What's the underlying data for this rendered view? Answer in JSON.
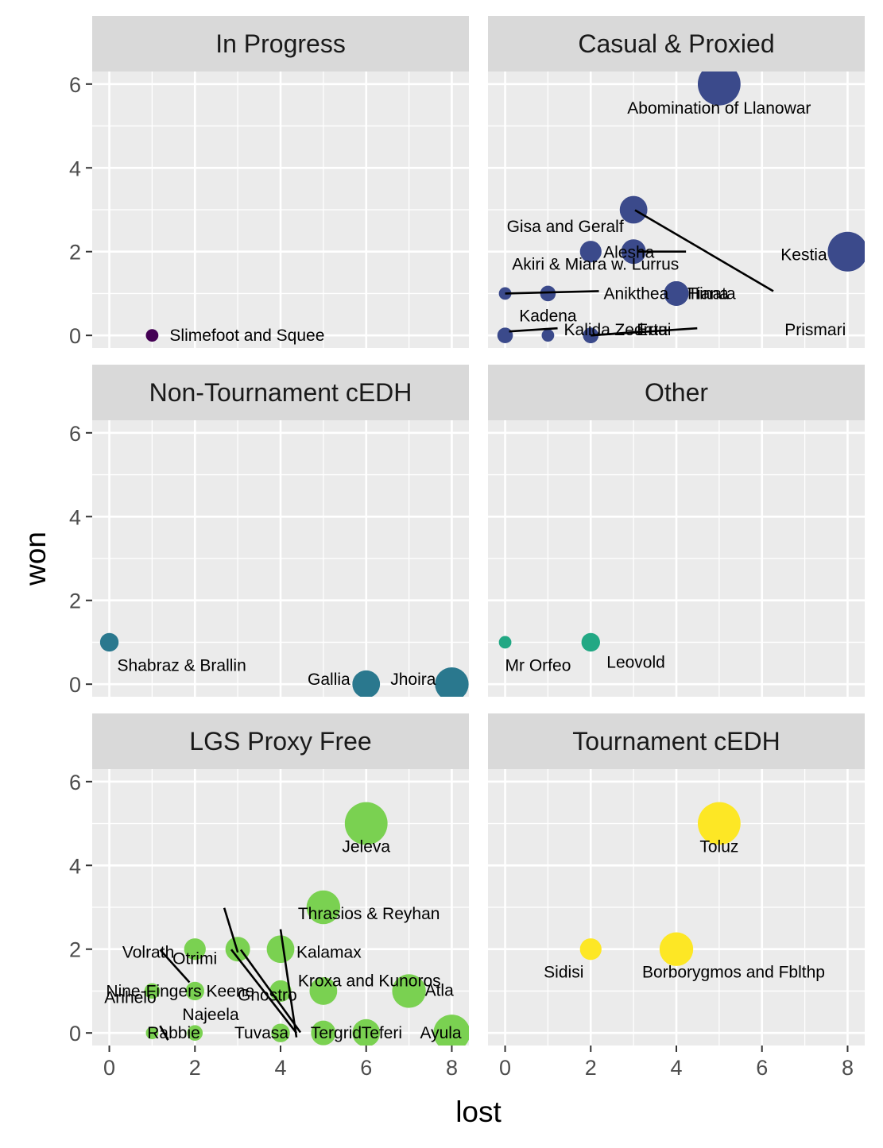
{
  "chart_data": {
    "type": "scatter",
    "xlabel": "lost",
    "ylabel": "won",
    "xlim": [
      -0.4,
      8.4
    ],
    "ylim": [
      -0.3,
      6.3
    ],
    "x_ticks": [
      "0",
      "2",
      "4",
      "6",
      "8"
    ],
    "y_ticks": [
      "0",
      "2",
      "4",
      "6"
    ],
    "grid": true,
    "legend": "none",
    "facets": [
      {
        "name": "In Progress",
        "color": "#440154",
        "points": [
          {
            "label": "Slimefoot and Squee",
            "x": 1,
            "y": 0,
            "size": 1
          }
        ]
      },
      {
        "name": "Casual & Proxied",
        "color": "#3b4a8b",
        "points": [
          {
            "label": "Abomination of Llanowar",
            "x": 5,
            "y": 6,
            "size": 11
          },
          {
            "label": "Gisa and Geralf",
            "x": 3,
            "y": 3,
            "size": 6
          },
          {
            "label": "Akiri & Miara w. Lurrus",
            "x": 2,
            "y": 2,
            "size": 4
          },
          {
            "label": "Alesha",
            "x": 3,
            "y": 2,
            "size": 5
          },
          {
            "label": "Kestia",
            "x": 8,
            "y": 2,
            "size": 10
          },
          {
            "label": "Anikthea",
            "x": 0,
            "y": 1,
            "size": 1
          },
          {
            "label": "Kadena",
            "x": 1,
            "y": 1,
            "size": 2
          },
          {
            "label": "Tiana",
            "x": 4,
            "y": 1,
            "size": 5
          },
          {
            "label": "Hinata",
            "x": 4,
            "y": 1,
            "size": 5
          },
          {
            "label": "Ertai",
            "x": 2,
            "y": 0,
            "size": 2
          },
          {
            "label": "Kalida",
            "x": 0,
            "y": 0,
            "size": 2
          },
          {
            "label": "Zedruu",
            "x": 1,
            "y": 0,
            "size": 1
          },
          {
            "label": "Prismari",
            "x": 2,
            "y": 0,
            "size": 2
          }
        ]
      },
      {
        "name": "Non-Tournament cEDH",
        "color": "#2a788e",
        "points": [
          {
            "label": "Shabraz & Brallin",
            "x": 0,
            "y": 1,
            "size": 3
          },
          {
            "label": "Gallia",
            "x": 6,
            "y": 0,
            "size": 6
          },
          {
            "label": "Jhoira",
            "x": 8,
            "y": 0,
            "size": 8
          }
        ]
      },
      {
        "name": "Other",
        "color": "#22a884",
        "points": [
          {
            "label": "Mr Orfeo",
            "x": 0,
            "y": 1,
            "size": 1
          },
          {
            "label": "Leovold",
            "x": 2,
            "y": 1,
            "size": 3
          }
        ]
      },
      {
        "name": "LGS Proxy Free",
        "color": "#7ad151",
        "points": [
          {
            "label": "Jeleva",
            "x": 6,
            "y": 5,
            "size": 11
          },
          {
            "label": "Thrasios & Reyhan",
            "x": 5,
            "y": 3,
            "size": 8
          },
          {
            "label": "Volrath",
            "x": 2,
            "y": 2,
            "size": 4
          },
          {
            "label": "Otrimi",
            "x": 3,
            "y": 2,
            "size": 5
          },
          {
            "label": "Kalamax",
            "x": 4,
            "y": 2,
            "size": 6
          },
          {
            "label": "Kroxa and Kunoros",
            "x": 5,
            "y": 1,
            "size": 6
          },
          {
            "label": "Atla",
            "x": 7,
            "y": 1,
            "size": 8
          },
          {
            "label": "Gnostro",
            "x": 4,
            "y": 1,
            "size": 4
          },
          {
            "label": "Nine-Fingers Keene",
            "x": 1,
            "y": 1,
            "size": 2
          },
          {
            "label": "Anhelo",
            "x": 2,
            "y": 1,
            "size": 3
          },
          {
            "label": "Najeela",
            "x": 1,
            "y": 0,
            "size": 1
          },
          {
            "label": "Rabbie",
            "x": 2,
            "y": 0,
            "size": 2
          },
          {
            "label": "Tuvasa",
            "x": 4,
            "y": 0,
            "size": 3
          },
          {
            "label": "Tergrid",
            "x": 5,
            "y": 0,
            "size": 5
          },
          {
            "label": "Teferi",
            "x": 6,
            "y": 0,
            "size": 6
          },
          {
            "label": "Ayula",
            "x": 8,
            "y": 0,
            "size": 9
          }
        ]
      },
      {
        "name": "Tournament cEDH",
        "color": "#fde725",
        "points": [
          {
            "label": "Toluz",
            "x": 5,
            "y": 5,
            "size": 11
          },
          {
            "label": "Sidisi",
            "x": 2,
            "y": 2,
            "size": 4
          },
          {
            "label": "Borborygmos and Fblthp",
            "x": 4,
            "y": 2,
            "size": 8
          }
        ]
      }
    ]
  }
}
